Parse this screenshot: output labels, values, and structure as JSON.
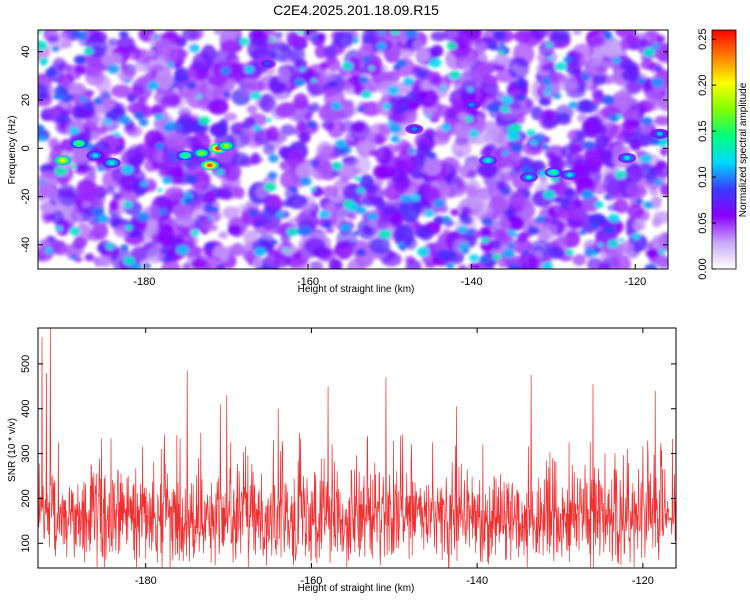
{
  "title": "C2E4.2025.201.18.09.R15",
  "chart_data": [
    {
      "type": "heatmap",
      "xlabel": "Height of straight line (km)",
      "ylabel": "Frequency (Hz)",
      "xlim": [
        -193,
        -116
      ],
      "ylim": [
        -50,
        49
      ],
      "xticks": [
        -180,
        -160,
        -140,
        -120
      ],
      "yticks": [
        -40,
        -20,
        0,
        20,
        40
      ],
      "colorbar": {
        "label": "Normalized spectral amplitude",
        "range": [
          0,
          0.26
        ],
        "ticks": [
          0.0,
          0.05,
          0.1,
          0.15,
          0.2,
          0.25
        ],
        "tick_labels": [
          "0.00",
          "0.05",
          "0.10",
          "0.15",
          "0.20",
          "0.25"
        ],
        "colors": [
          "#ffffff",
          "#c8a8f8",
          "#8a00ff",
          "#3a3aff",
          "#00d8ff",
          "#00ff80",
          "#80ff00",
          "#ffff00",
          "#ff8000",
          "#ff0000"
        ]
      },
      "hotspots": [
        {
          "x": -190,
          "y": -5,
          "v": 0.2
        },
        {
          "x": -188,
          "y": 2,
          "v": 0.16
        },
        {
          "x": -186,
          "y": -3,
          "v": 0.12
        },
        {
          "x": -184,
          "y": -6,
          "v": 0.13
        },
        {
          "x": -175,
          "y": -3,
          "v": 0.15
        },
        {
          "x": -173,
          "y": -2,
          "v": 0.17
        },
        {
          "x": -171,
          "y": 0,
          "v": 0.25
        },
        {
          "x": -172,
          "y": -7,
          "v": 0.24
        },
        {
          "x": -170,
          "y": 1,
          "v": 0.18
        },
        {
          "x": -138,
          "y": -5,
          "v": 0.13
        },
        {
          "x": -133,
          "y": -12,
          "v": 0.12
        },
        {
          "x": -130,
          "y": -10,
          "v": 0.14
        },
        {
          "x": -128,
          "y": -11,
          "v": 0.12
        },
        {
          "x": -121,
          "y": -4,
          "v": 0.12
        },
        {
          "x": -117,
          "y": 6,
          "v": 0.11
        },
        {
          "x": -147,
          "y": 8,
          "v": 0.1
        },
        {
          "x": -140,
          "y": 18,
          "v": 0.1
        },
        {
          "x": -165,
          "y": 35,
          "v": 0.09
        }
      ]
    },
    {
      "type": "line",
      "xlabel": "Height of straight line (km)",
      "ylabel": "SNR (10 * v/v)",
      "xlim": [
        -193,
        -116
      ],
      "ylim": [
        45,
        580
      ],
      "xticks": [
        -180,
        -160,
        -140,
        -120
      ],
      "yticks": [
        100,
        200,
        300,
        400,
        500
      ],
      "color": "#f03030",
      "peaks": [
        {
          "x": -192.5,
          "y": 560
        },
        {
          "x": -192.0,
          "y": 480
        },
        {
          "x": -191.5,
          "y": 580
        },
        {
          "x": -175.0,
          "y": 485
        },
        {
          "x": -171.0,
          "y": 410
        },
        {
          "x": -170.2,
          "y": 430
        },
        {
          "x": -164.0,
          "y": 400
        },
        {
          "x": -158.0,
          "y": 450
        },
        {
          "x": -151.0,
          "y": 470
        },
        {
          "x": -142.5,
          "y": 405
        },
        {
          "x": -133.5,
          "y": 475
        },
        {
          "x": -126.0,
          "y": 455
        },
        {
          "x": -118.5,
          "y": 440
        }
      ],
      "baseline": {
        "mean": 160,
        "spread": 70,
        "spikes_max": 350
      }
    }
  ]
}
